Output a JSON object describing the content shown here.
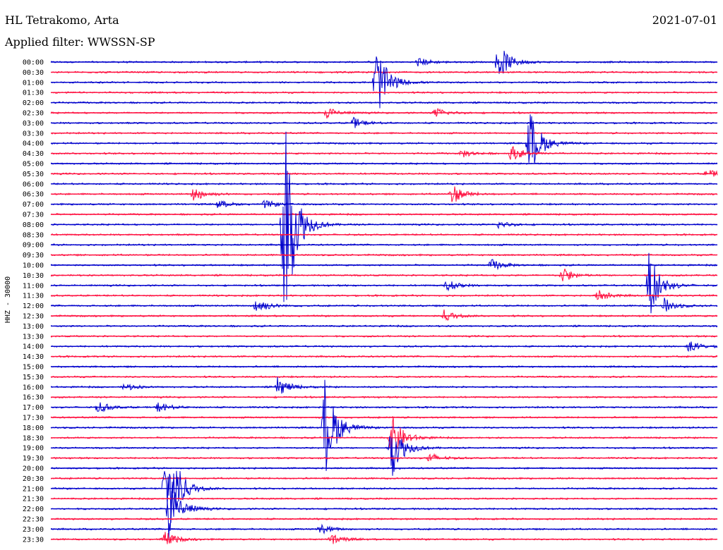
{
  "header": {
    "station": "HL Tetrakomo, Arta",
    "date": "2021-07-01",
    "filter": "Applied filter: WWSSN-SP"
  },
  "chart_data": {
    "type": "line",
    "title": "HL Tetrakomo, Arta",
    "subtitle": "Applied filter: WWSSN-SP",
    "ylabel": "HHZ - 30000",
    "xlabel": "",
    "colors": [
      "#0000cc",
      "#ff1040"
    ],
    "grid": false,
    "rows": [
      "00:00",
      "00:30",
      "01:00",
      "01:30",
      "02:00",
      "02:30",
      "03:00",
      "03:30",
      "04:00",
      "04:30",
      "05:00",
      "05:30",
      "06:00",
      "06:30",
      "07:00",
      "07:30",
      "08:00",
      "08:30",
      "09:00",
      "09:30",
      "10:00",
      "10:30",
      "11:00",
      "11:30",
      "12:00",
      "12:30",
      "13:00",
      "13:30",
      "14:00",
      "14:30",
      "15:00",
      "15:30",
      "16:00",
      "16:30",
      "17:00",
      "17:30",
      "18:00",
      "18:30",
      "19:00",
      "19:30",
      "20:00",
      "20:30",
      "21:00",
      "21:30",
      "22:00",
      "22:30",
      "23:00",
      "23:30"
    ],
    "events": [
      {
        "row": 0,
        "minute": 16.5,
        "amp": 7
      },
      {
        "row": 0,
        "minute": 20.1,
        "amp": 30
      },
      {
        "row": 2,
        "minute": 14.6,
        "amp": 60
      },
      {
        "row": 5,
        "minute": 12.4,
        "amp": 9
      },
      {
        "row": 5,
        "minute": 17.3,
        "amp": 8
      },
      {
        "row": 6,
        "minute": 13.6,
        "amp": 8
      },
      {
        "row": 8,
        "minute": 21.5,
        "amp": 55
      },
      {
        "row": 9,
        "minute": 20.7,
        "amp": 12
      },
      {
        "row": 9,
        "minute": 18.5,
        "amp": 6
      },
      {
        "row": 11,
        "minute": 29.5,
        "amp": 7
      },
      {
        "row": 13,
        "minute": 18.0,
        "amp": 17
      },
      {
        "row": 13,
        "minute": 6.4,
        "amp": 12
      },
      {
        "row": 14,
        "minute": 7.5,
        "amp": 6
      },
      {
        "row": 14,
        "minute": 9.6,
        "amp": 6
      },
      {
        "row": 16,
        "minute": 10.4,
        "amp": 200
      },
      {
        "row": 16,
        "minute": 20.1,
        "amp": 6
      },
      {
        "row": 20,
        "minute": 19.8,
        "amp": 9
      },
      {
        "row": 21,
        "minute": 23.0,
        "amp": 12
      },
      {
        "row": 22,
        "minute": 26.9,
        "amp": 50
      },
      {
        "row": 22,
        "minute": 17.8,
        "amp": 9
      },
      {
        "row": 23,
        "minute": 24.6,
        "amp": 10
      },
      {
        "row": 24,
        "minute": 9.2,
        "amp": 14
      },
      {
        "row": 24,
        "minute": 27.6,
        "amp": 11
      },
      {
        "row": 25,
        "minute": 17.7,
        "amp": 9
      },
      {
        "row": 28,
        "minute": 28.7,
        "amp": 9
      },
      {
        "row": 32,
        "minute": 3.3,
        "amp": 6
      },
      {
        "row": 32,
        "minute": 10.2,
        "amp": 14
      },
      {
        "row": 34,
        "minute": 2.1,
        "amp": 9
      },
      {
        "row": 34,
        "minute": 4.8,
        "amp": 8
      },
      {
        "row": 36,
        "minute": 12.3,
        "amp": 80
      },
      {
        "row": 37,
        "minute": 15.3,
        "amp": 36
      },
      {
        "row": 38,
        "minute": 15.3,
        "amp": 46
      },
      {
        "row": 39,
        "minute": 17.0,
        "amp": 8
      },
      {
        "row": 42,
        "minute": 5.1,
        "amp": 55
      },
      {
        "row": 42,
        "minute": 5.4,
        "amp": 34
      },
      {
        "row": 44,
        "minute": 5.3,
        "amp": 50
      },
      {
        "row": 46,
        "minute": 12.1,
        "amp": 8
      },
      {
        "row": 47,
        "minute": 5.1,
        "amp": 12
      },
      {
        "row": 47,
        "minute": 12.6,
        "amp": 9
      }
    ]
  }
}
